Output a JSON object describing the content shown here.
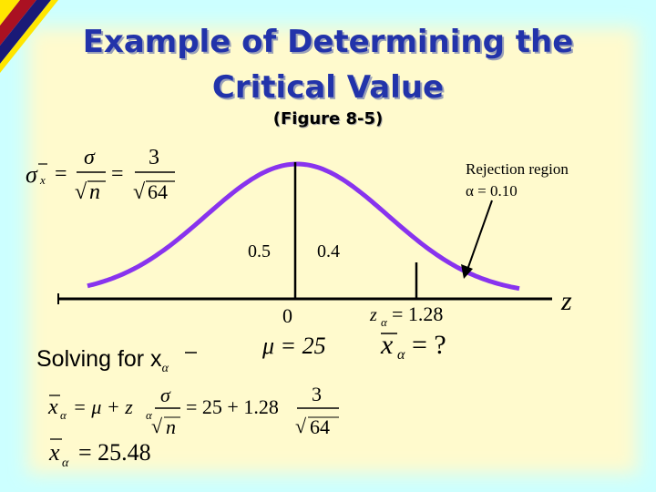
{
  "slide": {
    "title_line1": "Example of Determining the",
    "title_line2": "Critical Value",
    "subtitle": "(Figure 8-5)"
  },
  "colors": {
    "background": "#ccffff",
    "panel": "#fffacd",
    "curve": "#8833ee",
    "title": "#2233aa",
    "corner_red": "#aa1122",
    "corner_blue": "#1a1a77",
    "corner_yellow": "#ffe600"
  },
  "formula_top": {
    "sigma": "σ",
    "sub": "x",
    "eq": "=",
    "sigma2": "σ",
    "sqrt": "√",
    "n": "n",
    "num": "3",
    "den": "64"
  },
  "diagram": {
    "rejection_label": "Rejection region",
    "alpha_label": "α = 0.10",
    "left_area": "0.5",
    "middle_area": "0.4",
    "center_value": "0",
    "z_axis_label": "z",
    "z_alpha": "z",
    "z_sub": "α",
    "z_eq": "= 1.28",
    "mu_label": "μ = 25",
    "x_alpha": "x",
    "x_sub": "α",
    "x_eq": "= ?"
  },
  "solving": {
    "heading": "Solving for x",
    "heading_sub": "α",
    "line1": {
      "lhs": "x",
      "lhs_sub": "α",
      "mid": "= μ + z",
      "mid_sub": "α",
      "sigma": "σ",
      "n": "n",
      "eq2": "= 25 + 1.28",
      "num": "3",
      "den": "64"
    },
    "line2": {
      "lhs": "x",
      "lhs_sub": "α",
      "result": "= 25.48"
    }
  }
}
